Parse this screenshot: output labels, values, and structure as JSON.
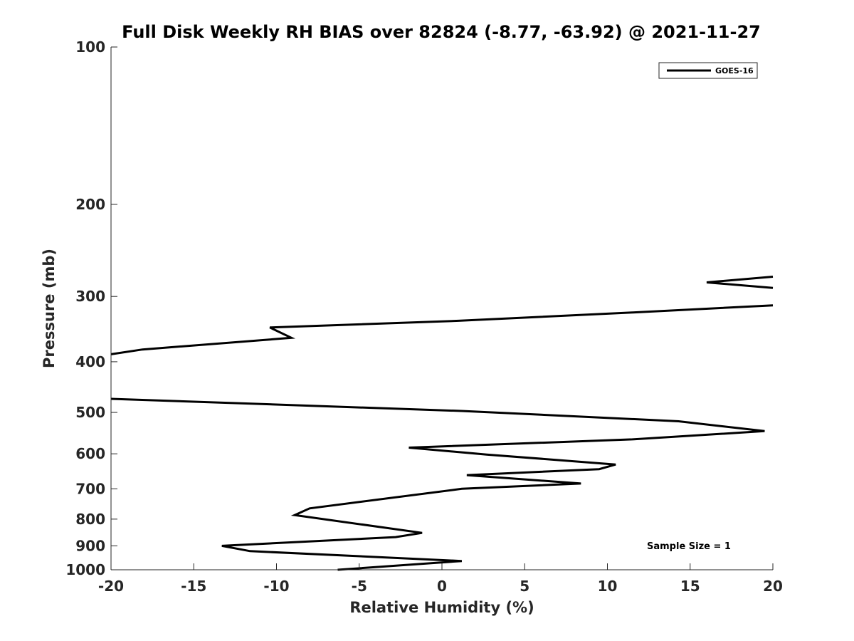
{
  "chart_data": {
    "type": "line",
    "title": "Full Disk Weekly RH BIAS over 82824 (-8.77, -63.92) @ 2021-11-27",
    "xlabel": "Relative Humidity (%)",
    "ylabel": "Pressure (mb)",
    "xlim": [
      -20,
      20
    ],
    "ylim": [
      100,
      1000
    ],
    "y_scale": "log",
    "y_reversed": true,
    "grid": false,
    "legend_position": "top-right",
    "x_ticks": [
      "-20",
      "-15",
      "-10",
      "-5",
      "0",
      "5",
      "10",
      "15",
      "20"
    ],
    "y_ticks": [
      "100",
      "200",
      "300",
      "400",
      "500",
      "600",
      "700",
      "800",
      "900",
      "1000"
    ],
    "annotation": "Sample Size = 1",
    "series": [
      {
        "name": "GOES-16",
        "color": "#000000",
        "points": [
          [
            -6.3,
            1000
          ],
          [
            1.2,
            962
          ],
          [
            -11.6,
            921
          ],
          [
            -13.3,
            900
          ],
          [
            -2.8,
            866
          ],
          [
            -1.2,
            850
          ],
          [
            -8.9,
            786
          ],
          [
            -8.0,
            763
          ],
          [
            1.2,
            700
          ],
          [
            8.4,
            684
          ],
          [
            1.5,
            659
          ],
          [
            9.5,
            642
          ],
          [
            10.5,
            629
          ],
          [
            2.7,
            602
          ],
          [
            -2.0,
            584
          ],
          [
            11.5,
            563
          ],
          [
            19.5,
            543
          ],
          [
            14.3,
            520
          ],
          [
            1.3,
            497
          ],
          [
            -20,
            471
          ]
        ]
      },
      {
        "name": "GOES-16",
        "color": "#000000",
        "points": [
          [
            -20,
            387
          ],
          [
            -18.1,
            379
          ],
          [
            -9.1,
            360
          ],
          [
            -10.4,
            344
          ],
          [
            1.0,
            334
          ],
          [
            11.5,
            322
          ],
          [
            20,
            312
          ]
        ]
      },
      {
        "name": "GOES-16",
        "color": "#000000",
        "points": [
          [
            20,
            289
          ],
          [
            16.0,
            282
          ],
          [
            20,
            275
          ]
        ]
      }
    ]
  }
}
